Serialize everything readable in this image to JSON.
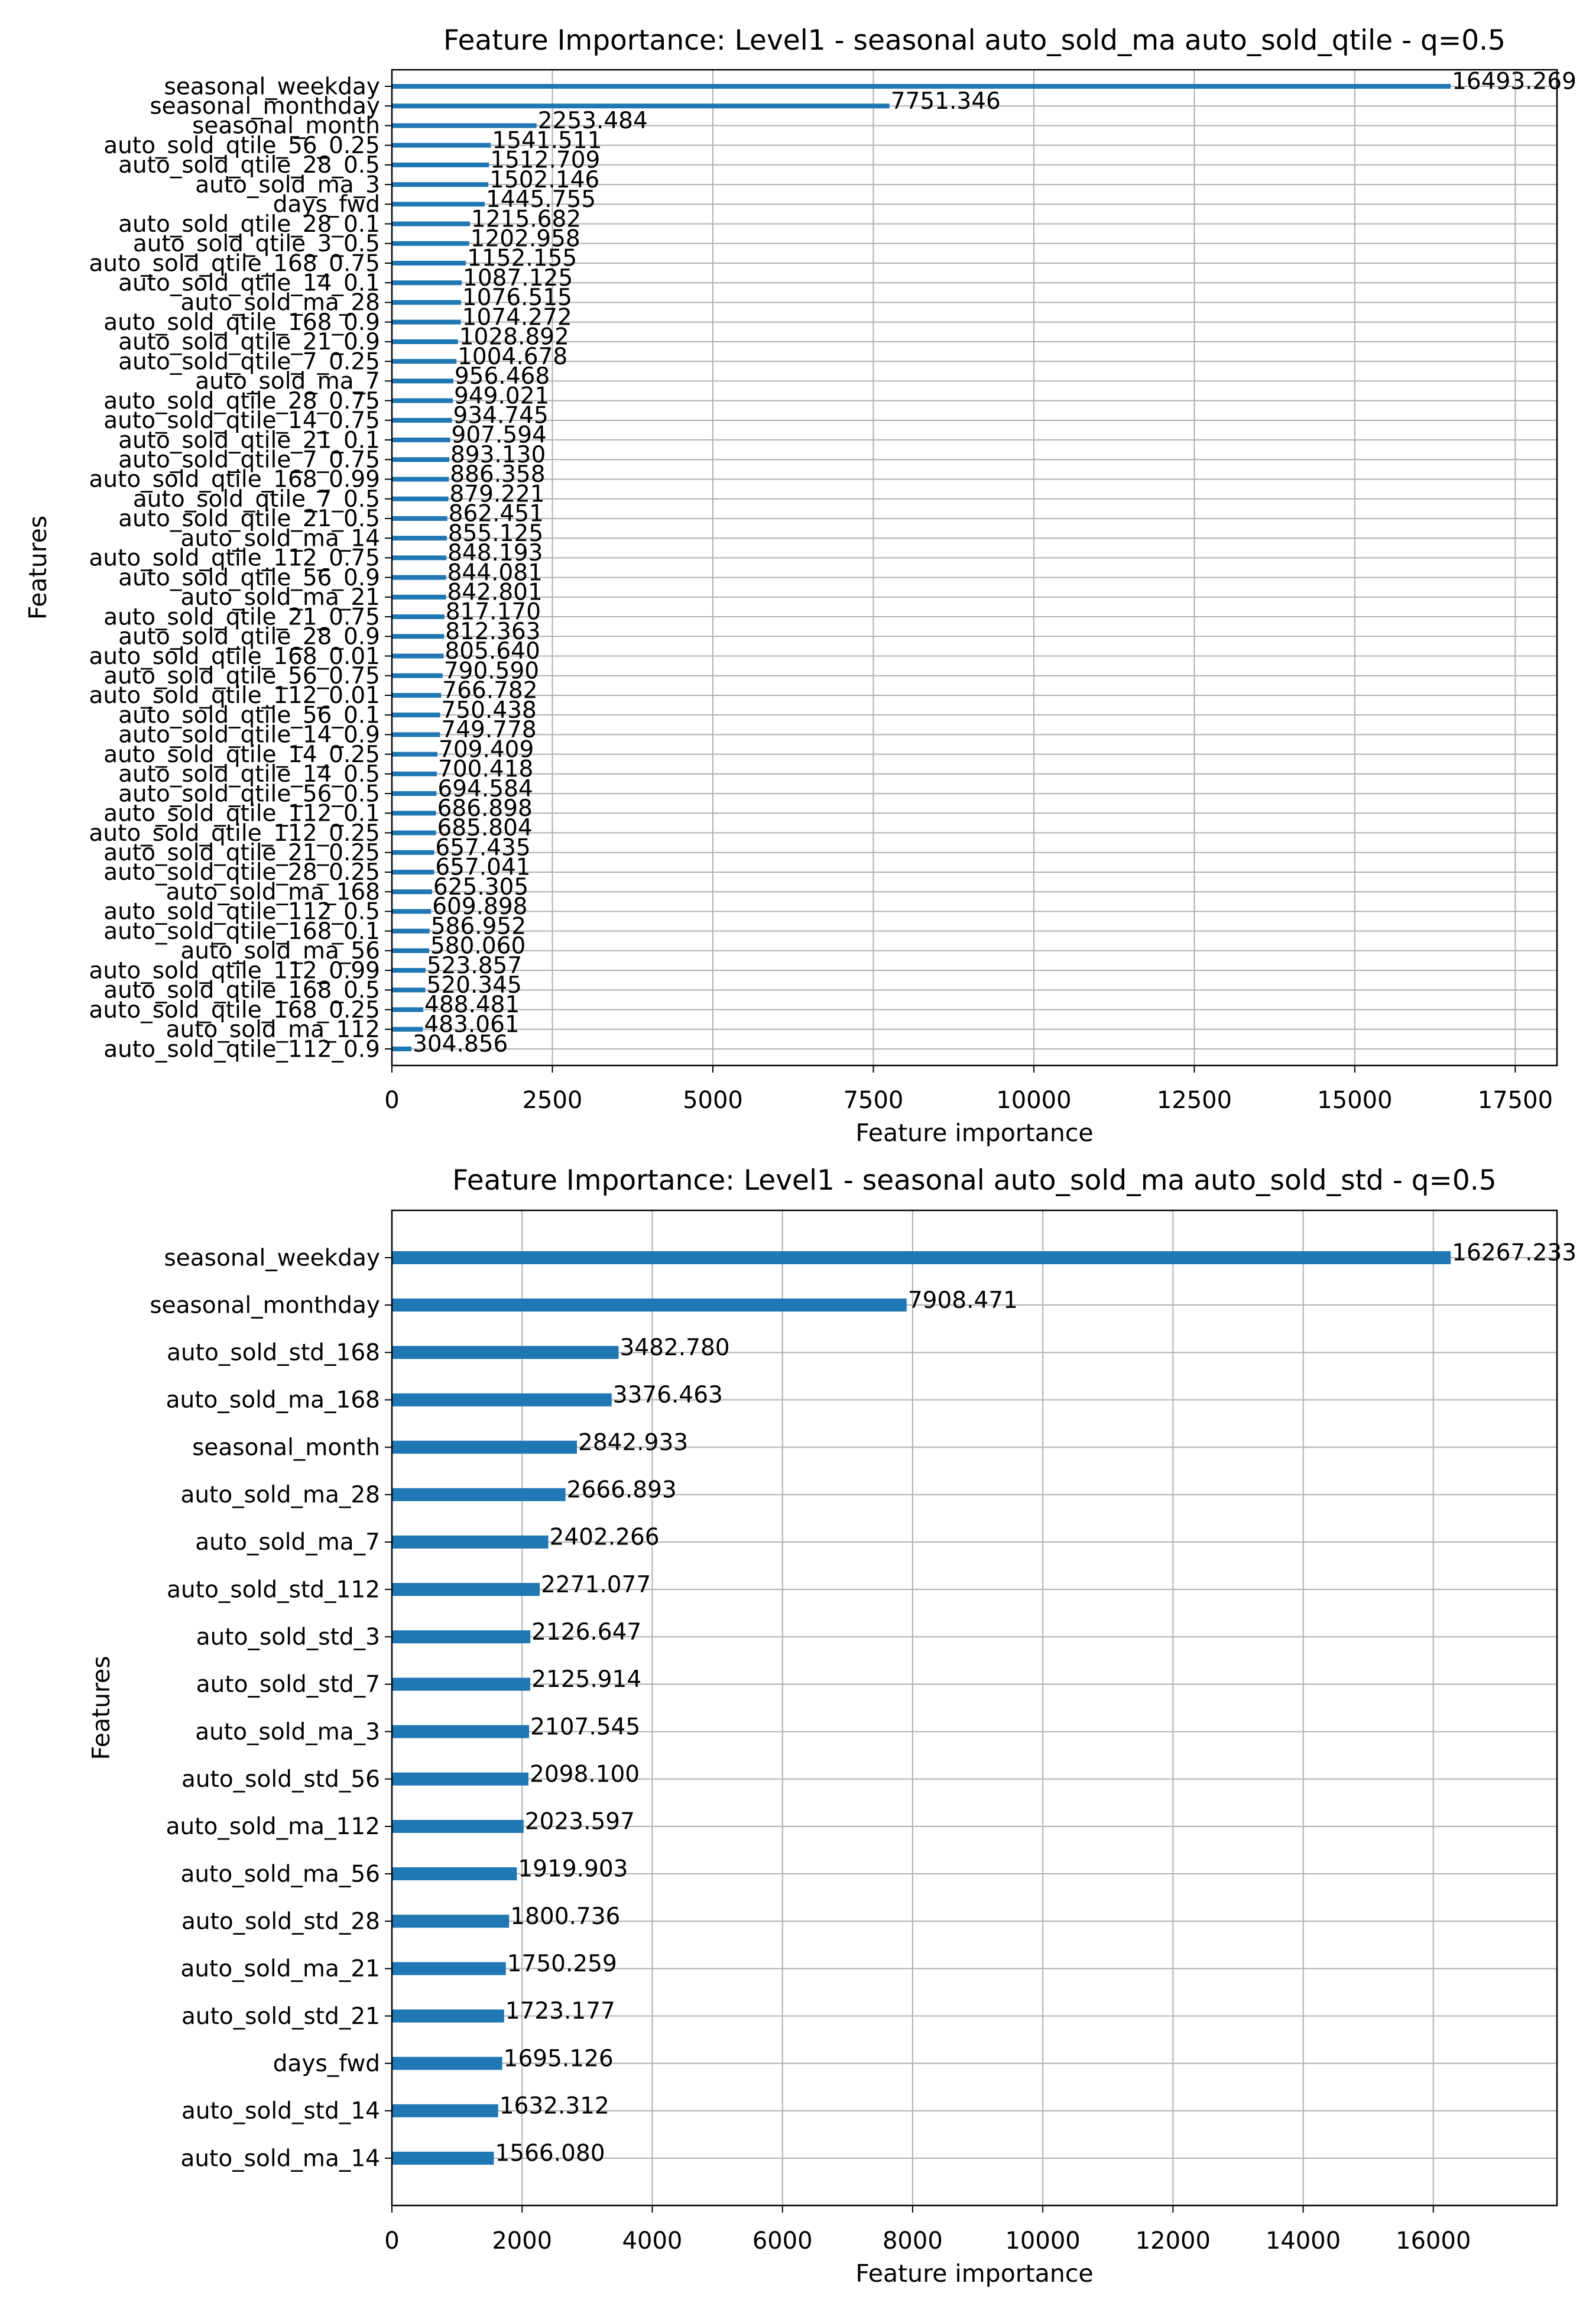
{
  "chart_data": [
    {
      "type": "bar",
      "orientation": "horizontal",
      "title": "Feature Importance: Level1 - seasonal auto_sold_ma auto_sold_qtile - q=0.5",
      "xlabel": "Feature importance",
      "ylabel": "Features",
      "xlim": [
        0,
        18150
      ],
      "xticks": [
        0,
        2500,
        5000,
        7500,
        10000,
        12500,
        15000,
        17500
      ],
      "grid": true,
      "legend": "none",
      "bar_color": "#1f77b4",
      "categories": [
        "seasonal_weekday",
        "seasonal_monthday",
        "seasonal_month",
        "auto_sold_qtile_56_0.25",
        "auto_sold_qtile_28_0.5",
        "auto_sold_ma_3",
        "days_fwd",
        "auto_sold_qtile_28_0.1",
        "auto_sold_qtile_3_0.5",
        "auto_sold_qtile_168_0.75",
        "auto_sold_qtile_14_0.1",
        "auto_sold_ma_28",
        "auto_sold_qtile_168_0.9",
        "auto_sold_qtile_21_0.9",
        "auto_sold_qtile_7_0.25",
        "auto_sold_ma_7",
        "auto_sold_qtile_28_0.75",
        "auto_sold_qtile_14_0.75",
        "auto_sold_qtile_21_0.1",
        "auto_sold_qtile_7_0.75",
        "auto_sold_qtile_168_0.99",
        "auto_sold_qtile_7_0.5",
        "auto_sold_qtile_21_0.5",
        "auto_sold_ma_14",
        "auto_sold_qtile_112_0.75",
        "auto_sold_qtile_56_0.9",
        "auto_sold_ma_21",
        "auto_sold_qtile_21_0.75",
        "auto_sold_qtile_28_0.9",
        "auto_sold_qtile_168_0.01",
        "auto_sold_qtile_56_0.75",
        "auto_sold_qtile_112_0.01",
        "auto_sold_qtile_56_0.1",
        "auto_sold_qtile_14_0.9",
        "auto_sold_qtile_14_0.25",
        "auto_sold_qtile_14_0.5",
        "auto_sold_qtile_56_0.5",
        "auto_sold_qtile_112_0.1",
        "auto_sold_qtile_112_0.25",
        "auto_sold_qtile_21_0.25",
        "auto_sold_qtile_28_0.25",
        "auto_sold_ma_168",
        "auto_sold_qtile_112_0.5",
        "auto_sold_qtile_168_0.1",
        "auto_sold_ma_56",
        "auto_sold_qtile_112_0.99",
        "auto_sold_qtile_168_0.5",
        "auto_sold_qtile_168_0.25",
        "auto_sold_ma_112",
        "auto_sold_qtile_112_0.9"
      ],
      "values": [
        16493.269,
        7751.346,
        2253.484,
        1541.511,
        1512.709,
        1502.146,
        1445.755,
        1215.682,
        1202.958,
        1152.155,
        1087.125,
        1076.515,
        1074.272,
        1028.892,
        1004.678,
        956.468,
        949.021,
        934.745,
        907.594,
        893.13,
        886.358,
        879.221,
        862.451,
        855.125,
        848.193,
        844.081,
        842.801,
        817.17,
        812.363,
        805.64,
        790.59,
        766.782,
        750.438,
        749.778,
        709.409,
        700.418,
        694.584,
        686.898,
        685.804,
        657.435,
        657.041,
        625.305,
        609.898,
        586.952,
        580.06,
        523.857,
        520.345,
        488.481,
        483.061,
        304.856
      ],
      "data_labels": [
        "16493.269",
        "7751.346",
        "2253.484",
        "1541.511",
        "1512.709",
        "1502.146",
        "1445.755",
        "1215.682",
        "1202.958",
        "1152.155",
        "1087.125",
        "1076.515",
        "1074.272",
        "1028.892",
        "1004.678",
        "956.468",
        "949.021",
        "934.745",
        "907.594",
        "893.130",
        "886.358",
        "879.221",
        "862.451",
        "855.125",
        "848.193",
        "844.081",
        "842.801",
        "817.170",
        "812.363",
        "805.640",
        "790.590",
        "766.782",
        "750.438",
        "749.778",
        "709.409",
        "700.418",
        "694.584",
        "686.898",
        "685.804",
        "657.435",
        "657.041",
        "625.305",
        "609.898",
        "586.952",
        "580.060",
        "523.857",
        "520.345",
        "488.481",
        "483.061",
        "304.856"
      ]
    },
    {
      "type": "bar",
      "orientation": "horizontal",
      "title": "Feature Importance: Level1 - seasonal auto_sold_ma auto_sold_std - q=0.5",
      "xlabel": "Feature importance",
      "ylabel": "Features",
      "xlim": [
        0,
        17900
      ],
      "xticks": [
        0,
        2000,
        4000,
        6000,
        8000,
        10000,
        12000,
        14000,
        16000
      ],
      "grid": true,
      "legend": "none",
      "bar_color": "#1f77b4",
      "categories": [
        "seasonal_weekday",
        "seasonal_monthday",
        "auto_sold_std_168",
        "auto_sold_ma_168",
        "seasonal_month",
        "auto_sold_ma_28",
        "auto_sold_ma_7",
        "auto_sold_std_112",
        "auto_sold_std_3",
        "auto_sold_std_7",
        "auto_sold_ma_3",
        "auto_sold_std_56",
        "auto_sold_ma_112",
        "auto_sold_ma_56",
        "auto_sold_std_28",
        "auto_sold_ma_21",
        "auto_sold_std_21",
        "days_fwd",
        "auto_sold_std_14",
        "auto_sold_ma_14"
      ],
      "values": [
        16267.233,
        7908.471,
        3482.78,
        3376.463,
        2842.933,
        2666.893,
        2402.266,
        2271.077,
        2126.647,
        2125.914,
        2107.545,
        2098.1,
        2023.597,
        1919.903,
        1800.736,
        1750.259,
        1723.177,
        1695.126,
        1632.312,
        1566.08
      ],
      "data_labels": [
        "16267.233",
        "7908.471",
        "3482.780",
        "3376.463",
        "2842.933",
        "2666.893",
        "2402.266",
        "2271.077",
        "2126.647",
        "2125.914",
        "2107.545",
        "2098.100",
        "2023.597",
        "1919.903",
        "1800.736",
        "1750.259",
        "1723.177",
        "1695.126",
        "1632.312",
        "1566.080"
      ]
    }
  ]
}
